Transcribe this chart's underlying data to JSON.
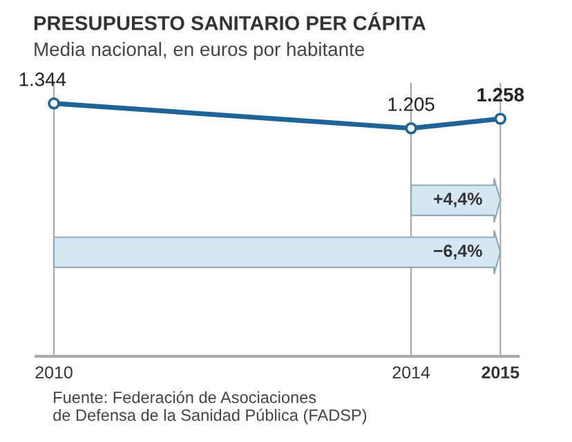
{
  "chart_data": {
    "type": "line",
    "title": "PRESUPUESTO SANITARIO PER CÁPITA",
    "subtitle": "Media nacional, en euros por habitante",
    "x": [
      2010,
      2014,
      2015
    ],
    "series": [
      {
        "color": "#1f6496",
        "values": [
          1344,
          1205,
          1258
        ],
        "value_labels": [
          "1.344",
          "1.205",
          "1.258"
        ]
      }
    ],
    "marker": "circle",
    "xlim": [
      2009.8,
      2015.2
    ],
    "xticks": [
      2010,
      2014,
      2015
    ],
    "grid": "x",
    "annotations": [
      "+4,4%",
      "−6,4%",
      "Fuente: Federación de Asociaciones\nde Defensa de la Sanidad Pública (FADSP)"
    ]
  }
}
